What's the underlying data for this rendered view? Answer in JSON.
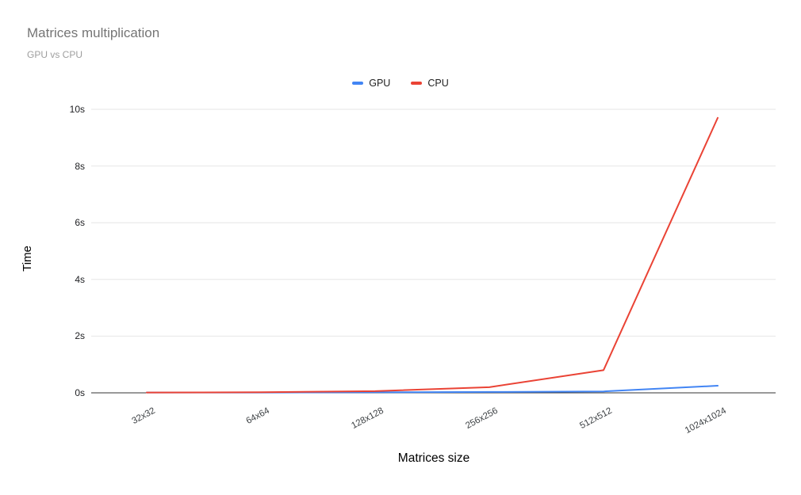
{
  "title": "Matrices multiplication",
  "subtitle": "GPU vs CPU",
  "chart_data": {
    "type": "line",
    "title": "Matrices multiplication",
    "subtitle": "GPU vs CPU",
    "xlabel": "Matrices size",
    "ylabel": "Time",
    "categories": [
      "32x32",
      "64x64",
      "128x128",
      "256x256",
      "512x512",
      "1024x1024"
    ],
    "series": [
      {
        "name": "GPU",
        "color": "#4285f4",
        "values": [
          0.01,
          0.01,
          0.02,
          0.03,
          0.05,
          0.25
        ]
      },
      {
        "name": "CPU",
        "color": "#ea4335",
        "values": [
          0.01,
          0.02,
          0.06,
          0.2,
          0.8,
          9.7
        ]
      }
    ],
    "ylim": [
      0,
      10
    ],
    "yticks": [
      {
        "value": 0,
        "label": "0s"
      },
      {
        "value": 2,
        "label": "2s"
      },
      {
        "value": 4,
        "label": "4s"
      },
      {
        "value": 6,
        "label": "6s"
      },
      {
        "value": 8,
        "label": "8s"
      },
      {
        "value": 10,
        "label": "10s"
      }
    ],
    "grid": true,
    "legend_position": "top"
  },
  "colors": {
    "gridline": "#e6e6e6",
    "baseline": "#333333",
    "background": "#ffffff"
  }
}
